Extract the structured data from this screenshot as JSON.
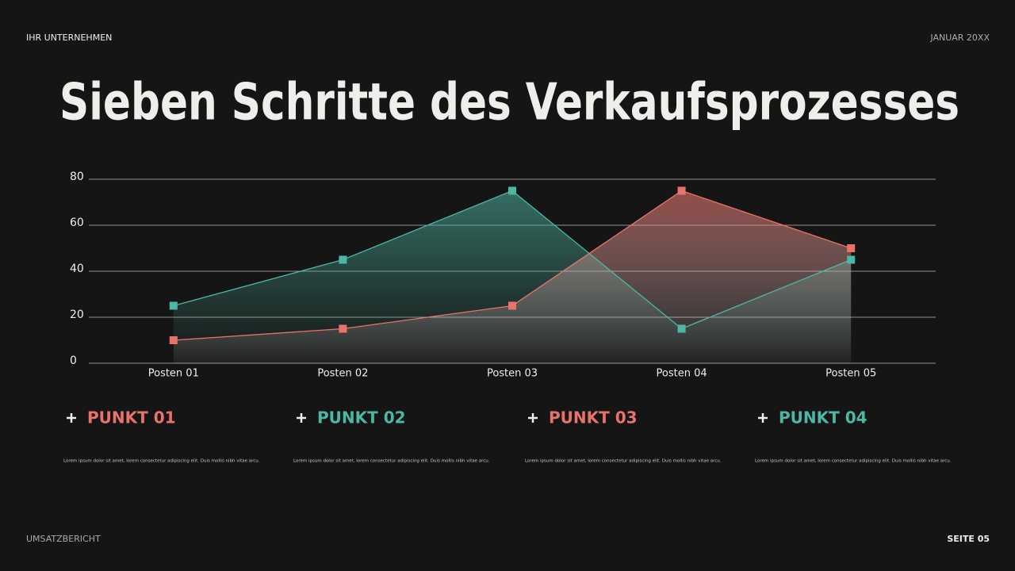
{
  "header": {
    "company": "IHR UNTERNEHMEN",
    "date": "JANUAR 20XX"
  },
  "title": "Sieben Schritte des Verkaufsprozesses",
  "chart_data": {
    "type": "area",
    "categories": [
      "Posten 01",
      "Posten 02",
      "Posten 03",
      "Posten 04",
      "Posten 05"
    ],
    "series": [
      {
        "color": "#4db6a4",
        "values": [
          25,
          45,
          75,
          15,
          45
        ]
      },
      {
        "color": "#e8736c",
        "values": [
          10,
          15,
          25,
          75,
          50
        ]
      }
    ],
    "ylim": [
      0,
      80
    ],
    "yticks": [
      0,
      20,
      40,
      60,
      80
    ],
    "grid": true
  },
  "points": [
    {
      "title": "PUNKT 01",
      "color": "#e8736c",
      "text": "Lorem ipsum dolor sit amet, lorem consectetur adipiscing elit. Duis mollis nibh vitae arcu."
    },
    {
      "title": "PUNKT 02",
      "color": "#4db6a4",
      "text": "Lorem ipsum dolor sit amet, lorem consectetur adipiscing elit. Duis mollis nibh vitae arcu."
    },
    {
      "title": "PUNKT 03",
      "color": "#e8736c",
      "text": "Lorem ipsum dolor sit amet, lorem consectetur adipiscing elit. Duis mollis nibh vitae arcu."
    },
    {
      "title": "PUNKT 04",
      "color": "#4db6a4",
      "text": "Lorem ipsum dolor sit amet, lorem consectetur adipiscing elit. Duis mollis nibh vitae arcu."
    }
  ],
  "footer": {
    "left": "UMSATZBERICHT",
    "right": "SEITE 05"
  }
}
